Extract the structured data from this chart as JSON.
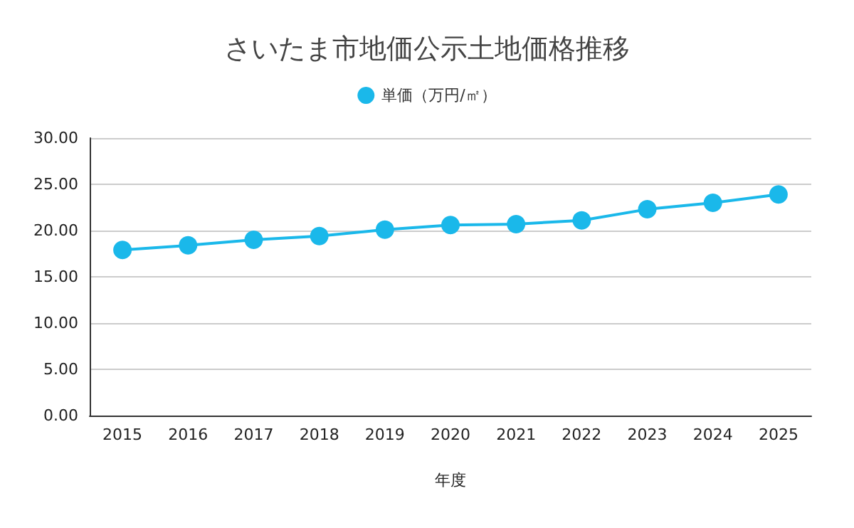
{
  "chart_data": {
    "type": "line",
    "title": "さいたま市地価公示土地価格推移",
    "xlabel": "年度",
    "categories": [
      "2015",
      "2016",
      "2017",
      "2018",
      "2019",
      "2020",
      "2021",
      "2022",
      "2023",
      "2024",
      "2025"
    ],
    "series": [
      {
        "name": "単価（万円/㎡）",
        "color": "#1ab8ea",
        "values": [
          17.9,
          18.4,
          19.0,
          19.4,
          20.1,
          20.6,
          20.7,
          21.1,
          22.3,
          23.0,
          23.9
        ]
      }
    ],
    "ylim": [
      0,
      30
    ],
    "yticks": [
      {
        "value": 0,
        "label": "0.00"
      },
      {
        "value": 5,
        "label": "5.00"
      },
      {
        "value": 10,
        "label": "10.00"
      },
      {
        "value": 15,
        "label": "15.00"
      },
      {
        "value": 20,
        "label": "20.00"
      },
      {
        "value": 25,
        "label": "25.00"
      },
      {
        "value": 30,
        "label": "30.00"
      }
    ],
    "grid": "y",
    "legend": "top",
    "marker": "circle"
  }
}
